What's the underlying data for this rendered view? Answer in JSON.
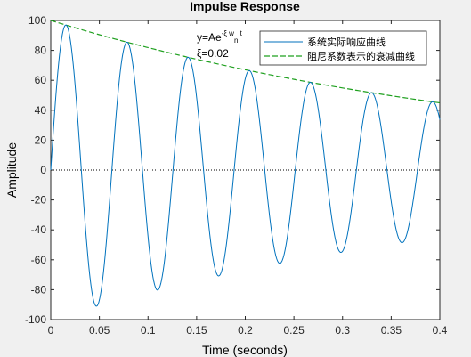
{
  "chart_data": {
    "type": "line",
    "title": "Impulse Response",
    "xlabel": "Time (seconds)",
    "ylabel": "Amplitude",
    "xlim": [
      0,
      0.4
    ],
    "ylim": [
      -100,
      100
    ],
    "x_ticks": [
      "0",
      "0.05",
      "0.1",
      "0.15",
      "0.2",
      "0.25",
      "0.3",
      "0.35",
      "0.4"
    ],
    "y_ticks": [
      "100",
      "80",
      "60",
      "40",
      "20",
      "0",
      "-20",
      "-40",
      "-60",
      "-80",
      "-100"
    ],
    "grid": false,
    "zero_line": true,
    "legend_position": "top-right",
    "series": [
      {
        "name": "系统实际响应曲线",
        "style": "solid",
        "color": "#0072bd",
        "model": "damped_sine",
        "amplitude": 100,
        "damping_ratio": 0.02,
        "natural_frequency_rad_s": 100,
        "peaks": [
          {
            "x": 0.016,
            "y": 97
          },
          {
            "x": 0.047,
            "y": -91
          },
          {
            "x": 0.079,
            "y": 86
          },
          {
            "x": 0.11,
            "y": -80
          },
          {
            "x": 0.141,
            "y": 75
          },
          {
            "x": 0.173,
            "y": -70
          },
          {
            "x": 0.204,
            "y": 66
          },
          {
            "x": 0.235,
            "y": -62
          },
          {
            "x": 0.267,
            "y": 58
          },
          {
            "x": 0.298,
            "y": -55
          },
          {
            "x": 0.33,
            "y": 51
          },
          {
            "x": 0.361,
            "y": -48
          },
          {
            "x": 0.392,
            "y": 45
          }
        ]
      },
      {
        "name": "阻尼系数表示的衰减曲线",
        "style": "dashed",
        "color": "#1fa01f",
        "model": "exponential_envelope",
        "amplitude": 100,
        "points": [
          {
            "x": 0,
            "y": 100
          },
          {
            "x": 0.1,
            "y": 82
          },
          {
            "x": 0.2,
            "y": 67
          },
          {
            "x": 0.3,
            "y": 55
          },
          {
            "x": 0.4,
            "y": 45
          }
        ]
      }
    ],
    "annotations": [
      {
        "base": "y=Ae",
        "sup": "-ξ w",
        "sub": "n",
        "tail": " t"
      },
      {
        "text": "ξ=0.02"
      }
    ]
  },
  "colors": {
    "figure_background": "#f0f0f0",
    "axes_background": "#ffffff",
    "response_line": "#0072bd",
    "envelope_line": "#1fa01f",
    "axis_color": "#262626"
  }
}
